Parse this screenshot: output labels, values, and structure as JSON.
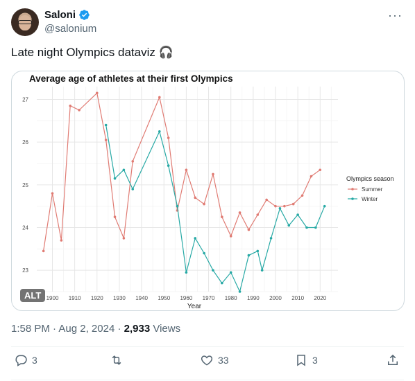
{
  "author": {
    "name": "Saloni",
    "handle": "@salonium"
  },
  "tweet": {
    "text": "Late night Olympics dataviz 🎧"
  },
  "image": {
    "alt_badge": "ALT"
  },
  "chart_data": {
    "type": "line",
    "title": "Average age of athletes at their first Olympics",
    "xlabel": "Year",
    "ylabel": "",
    "xlim": [
      1893,
      2028
    ],
    "ylim": [
      22.5,
      27.3
    ],
    "xticks": [
      1900,
      1910,
      1920,
      1930,
      1940,
      1950,
      1960,
      1970,
      1980,
      1990,
      2000,
      2010,
      2020
    ],
    "yticks": [
      23,
      24,
      25,
      26,
      27
    ],
    "grid": true,
    "legend_title": "Olympics season",
    "legend_position": "right",
    "series": [
      {
        "name": "Summer",
        "color": "#e07b73",
        "x": [
          1896,
          1900,
          1904,
          1908,
          1912,
          1920,
          1924,
          1928,
          1932,
          1936,
          1948,
          1952,
          1956,
          1960,
          1964,
          1968,
          1972,
          1976,
          1980,
          1984,
          1988,
          1992,
          1996,
          2000,
          2004,
          2008,
          2012,
          2016,
          2020
        ],
        "y": [
          23.45,
          24.8,
          23.7,
          26.85,
          26.75,
          27.15,
          26.05,
          24.25,
          23.75,
          25.55,
          27.05,
          26.1,
          24.4,
          25.35,
          24.7,
          24.55,
          25.25,
          24.25,
          23.8,
          24.35,
          23.95,
          24.3,
          24.65,
          24.5,
          24.5,
          24.55,
          24.75,
          25.2,
          25.35
        ]
      },
      {
        "name": "Winter",
        "color": "#27a9a5",
        "x": [
          1924,
          1928,
          1932,
          1936,
          1948,
          1952,
          1956,
          1960,
          1964,
          1968,
          1972,
          1976,
          1980,
          1984,
          1988,
          1992,
          1994,
          1998,
          2002,
          2006,
          2010,
          2014,
          2018,
          2022
        ],
        "y": [
          26.4,
          25.15,
          25.35,
          24.9,
          26.25,
          25.45,
          24.5,
          22.95,
          23.75,
          23.4,
          23.0,
          22.7,
          22.95,
          22.5,
          23.35,
          23.45,
          23.0,
          23.75,
          24.45,
          24.05,
          24.3,
          24.0,
          24.0,
          24.5
        ]
      }
    ]
  },
  "meta": {
    "time": "1:58 PM",
    "separator": "·",
    "date": "Aug 2, 2024",
    "views_count": "2,933",
    "views_label": "Views"
  },
  "actions": {
    "replies": "3",
    "reposts": "",
    "likes": "33",
    "bookmarks": "3"
  },
  "colors": {
    "text": "#0f1419",
    "muted": "#536471",
    "border": "#cfd9de",
    "verified": "#1d9bf0"
  }
}
